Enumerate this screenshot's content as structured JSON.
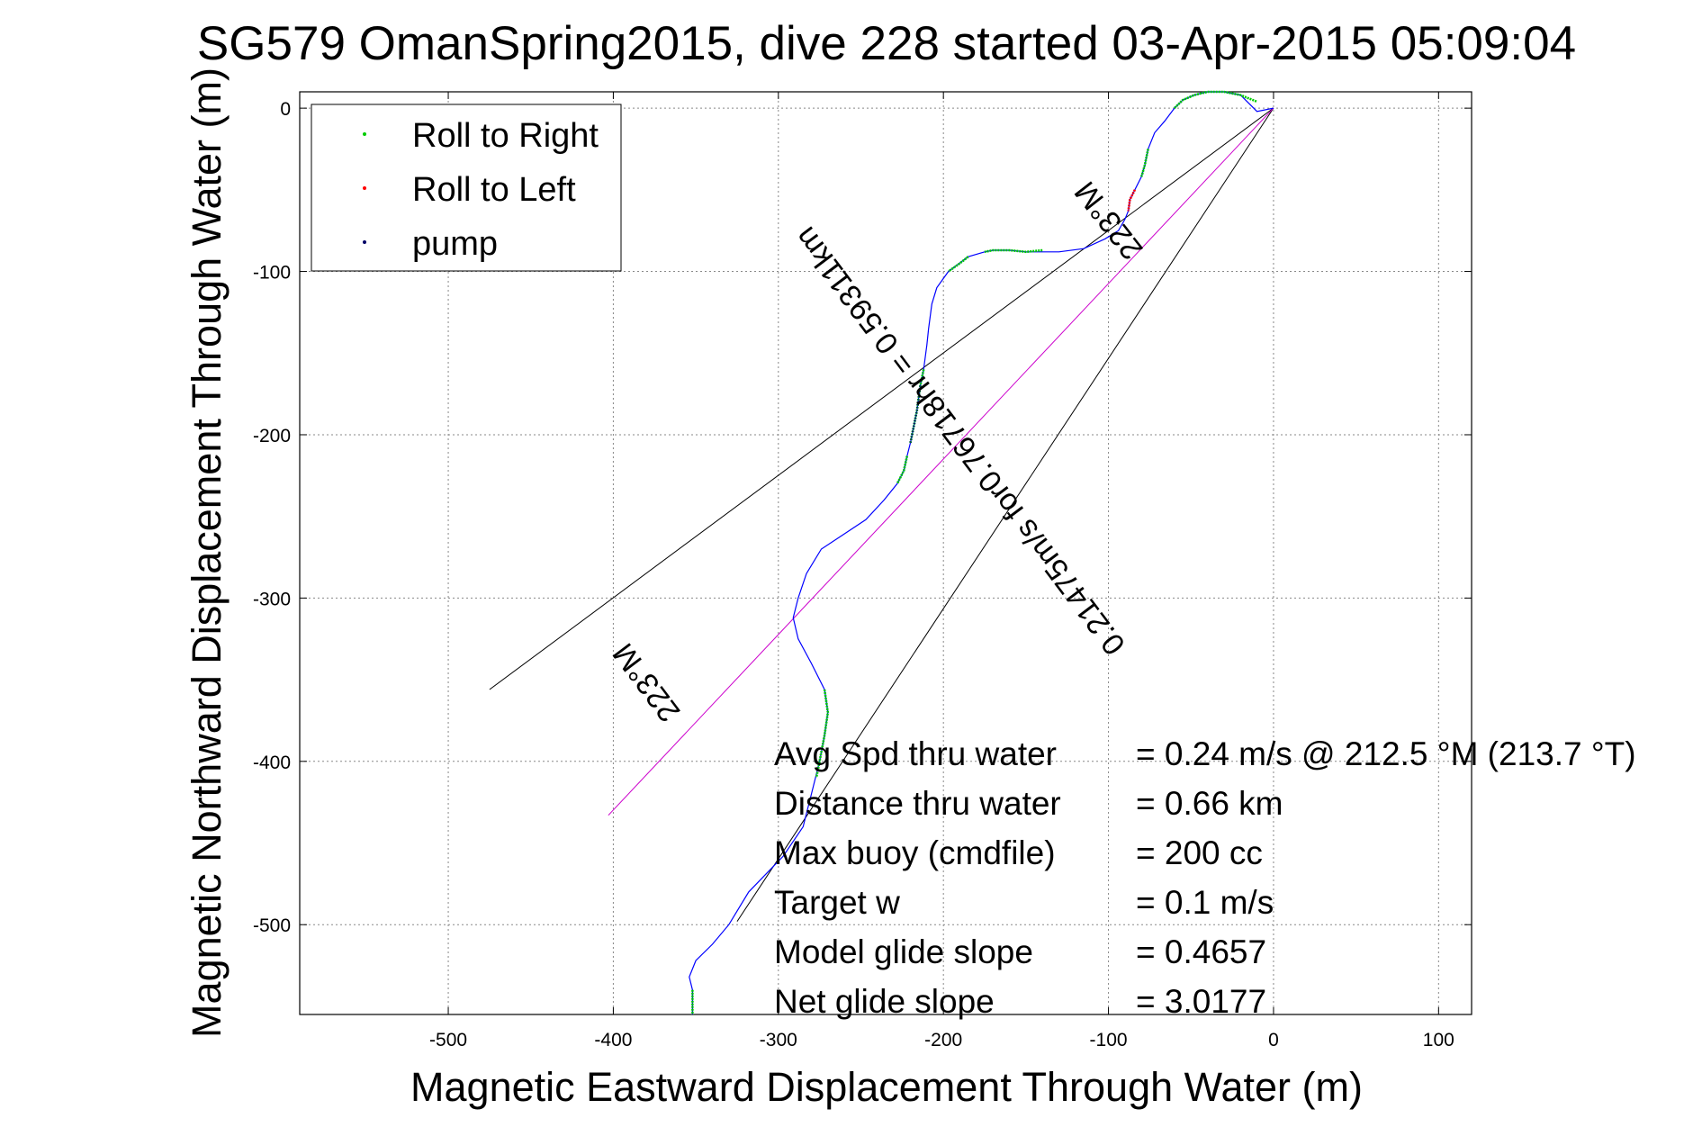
{
  "chart_data": {
    "type": "line",
    "title": "SG579 OmanSpring2015, dive 228 started 03-Apr-2015 05:09:04",
    "xlabel": "Magnetic Eastward Displacement Through Water (m)",
    "ylabel": "Magnetic Northward Displacement Through Water (m)",
    "xlim": [
      -590,
      120
    ],
    "ylim": [
      -555,
      10
    ],
    "xticks": [
      -500,
      -400,
      -300,
      -200,
      -100,
      0,
      100
    ],
    "yticks": [
      0,
      -100,
      -200,
      -300,
      -400,
      -500
    ],
    "grid": true,
    "legend_position": "top-left",
    "legend": [
      {
        "label": "Roll to Right",
        "color": "#00cc00"
      },
      {
        "label": "Roll to Left",
        "color": "#ff0000"
      },
      {
        "label": "pump",
        "color": "#000066"
      }
    ],
    "track": {
      "color": "#0000ff",
      "points": [
        [
          0,
          0
        ],
        [
          -10,
          -2
        ],
        [
          -20,
          8
        ],
        [
          -30,
          10
        ],
        [
          -40,
          10
        ],
        [
          -48,
          8
        ],
        [
          -55,
          5
        ],
        [
          -60,
          0
        ],
        [
          -66,
          -8
        ],
        [
          -72,
          -15
        ],
        [
          -76,
          -25
        ],
        [
          -78,
          -35
        ],
        [
          -80,
          -42
        ],
        [
          -84,
          -50
        ],
        [
          -87,
          -56
        ],
        [
          -88,
          -63
        ],
        [
          -90,
          -68
        ],
        [
          -94,
          -75
        ],
        [
          -102,
          -80
        ],
        [
          -115,
          -86
        ],
        [
          -130,
          -88
        ],
        [
          -150,
          -88
        ],
        [
          -160,
          -87
        ],
        [
          -170,
          -87
        ],
        [
          -175,
          -88
        ],
        [
          -185,
          -91
        ],
        [
          -197,
          -100
        ],
        [
          -204,
          -110
        ],
        [
          -207,
          -120
        ],
        [
          -209,
          -135
        ],
        [
          -210,
          -145
        ],
        [
          -212,
          -160
        ],
        [
          -214,
          -170
        ],
        [
          -216,
          -185
        ],
        [
          -218,
          -195
        ],
        [
          -220,
          -205
        ],
        [
          -222,
          -213
        ],
        [
          -224,
          -222
        ],
        [
          -228,
          -230
        ],
        [
          -236,
          -240
        ],
        [
          -247,
          -252
        ],
        [
          -262,
          -262
        ],
        [
          -274,
          -270
        ],
        [
          -283,
          -285
        ],
        [
          -288,
          -300
        ],
        [
          -291,
          -312
        ],
        [
          -288,
          -325
        ],
        [
          -280,
          -340
        ],
        [
          -272,
          -356
        ],
        [
          -270,
          -370
        ],
        [
          -272,
          -384
        ],
        [
          -275,
          -400
        ],
        [
          -280,
          -420
        ],
        [
          -285,
          -440
        ],
        [
          -297,
          -458
        ],
        [
          -318,
          -480
        ],
        [
          -330,
          -500
        ],
        [
          -340,
          -512
        ],
        [
          -350,
          -522
        ],
        [
          -354,
          -532
        ],
        [
          -352,
          -540
        ],
        [
          -352,
          -555
        ]
      ]
    },
    "roll_to_right_segments": [
      [
        [
          -60,
          0
        ],
        [
          -55,
          5
        ],
        [
          -48,
          8
        ],
        [
          -40,
          10
        ],
        [
          -30,
          10
        ],
        [
          -20,
          8
        ],
        [
          -15,
          6
        ],
        [
          -10,
          4
        ]
      ],
      [
        [
          -76,
          -25
        ],
        [
          -78,
          -35
        ],
        [
          -80,
          -42
        ]
      ],
      [
        [
          -140,
          -87
        ],
        [
          -150,
          -88
        ],
        [
          -160,
          -87
        ],
        [
          -170,
          -87
        ],
        [
          -175,
          -88
        ]
      ],
      [
        [
          -185,
          -91
        ],
        [
          -190,
          -95
        ],
        [
          -197,
          -100
        ]
      ],
      [
        [
          -212,
          -160
        ],
        [
          -214,
          -170
        ],
        [
          -216,
          -185
        ],
        [
          -218,
          -195
        ],
        [
          -220,
          -205
        ]
      ],
      [
        [
          -222,
          -213
        ],
        [
          -224,
          -222
        ],
        [
          -228,
          -230
        ]
      ],
      [
        [
          -272,
          -356
        ],
        [
          -270,
          -370
        ],
        [
          -272,
          -384
        ],
        [
          -275,
          -400
        ],
        [
          -277,
          -410
        ]
      ],
      [
        [
          -352,
          -540
        ],
        [
          -352,
          -555
        ]
      ]
    ],
    "roll_to_left_segments": [
      [
        [
          -84,
          -50
        ],
        [
          -87,
          -56
        ],
        [
          -88,
          -63
        ]
      ]
    ],
    "pump_segments": [
      [
        [
          -214,
          -170
        ],
        [
          -216,
          -185
        ],
        [
          -218,
          -195
        ],
        [
          -220,
          -205
        ]
      ]
    ],
    "reference_lines": [
      {
        "color": "#000000",
        "points": [
          [
            0,
            0
          ],
          [
            -475,
            -356
          ]
        ]
      },
      {
        "color": "#000000",
        "points": [
          [
            0,
            0
          ],
          [
            -325,
            -498
          ]
        ]
      },
      {
        "color": "#cc00cc",
        "points": [
          [
            0,
            0
          ],
          [
            -403,
            -433
          ]
        ]
      }
    ],
    "annotations": [
      {
        "text": "223°M",
        "x": -95,
        "y": -65,
        "angle": 52
      },
      {
        "text": "0.21475m/s for0.76718hr = 0.59311km",
        "x": -185,
        "y": -200,
        "angle": 53
      },
      {
        "text": "223°M",
        "x": -375,
        "y": -348,
        "angle": 53
      }
    ],
    "stats": [
      {
        "label": "Avg Spd thru water",
        "value": "=  0.24 m/s @ 212.5 °M (213.7 °T)"
      },
      {
        "label": "Distance thru water",
        "value": "=  0.66 km"
      },
      {
        "label": "Max buoy (cmdfile)",
        "value": "= 200 cc"
      },
      {
        "label": "Target w",
        "value": "= 0.1 m/s"
      },
      {
        "label": "Model glide slope",
        "value": "= 0.4657"
      },
      {
        "label": "Net glide slope",
        "value": "= 3.0177"
      }
    ]
  }
}
